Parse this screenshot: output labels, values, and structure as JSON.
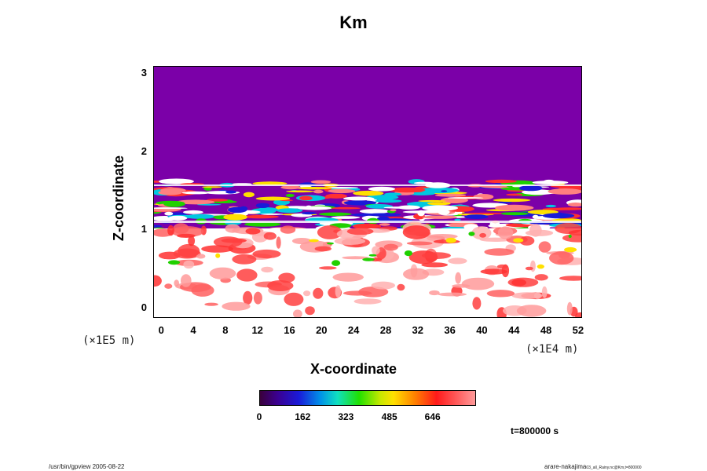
{
  "chart_data": {
    "type": "heatmap",
    "title": "Km",
    "xlabel": "X-coordinate",
    "ylabel": "Z-coordinate",
    "x_scale_label": "(×1E4 m)",
    "y_scale_label": "(×1E5 m)",
    "x_ticks": [
      "0",
      "4",
      "8",
      "12",
      "16",
      "20",
      "24",
      "28",
      "32",
      "36",
      "40",
      "44",
      "48",
      "52"
    ],
    "y_ticks": [
      "0",
      "1",
      "2",
      "3"
    ],
    "xlim": [
      -1,
      52.5
    ],
    "ylim": [
      -0.12,
      3.1
    ],
    "colorbar": {
      "ticks": [
        "0",
        "162",
        "323",
        "485",
        "646"
      ],
      "range": [
        0,
        808
      ]
    },
    "regions": [
      {
        "desc": "uniform low values (purple)",
        "z_range": [
          1.65,
          3.1
        ],
        "value": 0
      },
      {
        "desc": "banded mixed values",
        "z_range": [
          1.05,
          1.65
        ],
        "value": "mixed"
      },
      {
        "desc": "high values with red patches",
        "z_range": [
          -0.12,
          1.05
        ],
        "value": "high"
      }
    ]
  },
  "footer": {
    "time_label": "t=800000 s",
    "left_note": "/usr/bin/gpview 2005-08-22",
    "right_note_main": "arare-nakajima",
    "right_note_small": "03_all_Rainy.nc@Km,t=800000"
  }
}
